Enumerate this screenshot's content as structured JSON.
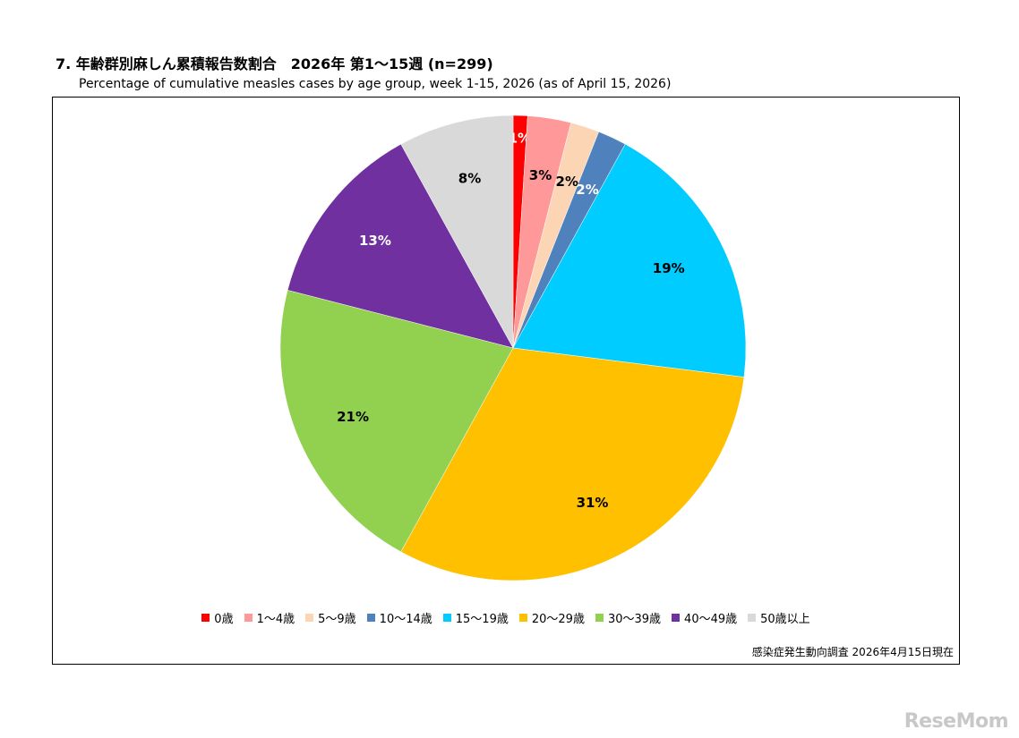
{
  "header": {
    "title": "7. 年齢群別麻しん累積報告数割合　2026年 第1～15週 (n=299)",
    "subtitle": "Percentage of cumulative measles cases by age group, week 1-15, 2026 (as of April 15, 2026)"
  },
  "footer": {
    "source_note": "感染症発生動向調査 2026年4月15日現在",
    "watermark": "ReseMom"
  },
  "chart_data": {
    "type": "pie",
    "title": "7. 年齢群別麻しん累積報告数割合　2026年 第1～15週 (n=299)",
    "subtitle": "Percentage of cumulative measles cases by age group, week 1-15, 2026 (as of April 15, 2026)",
    "n": 299,
    "start_angle": "top (12 o'clock), clockwise",
    "legend_position": "bottom",
    "slices": [
      {
        "label": "0歳",
        "value": 1,
        "display": "1%",
        "color": "#ff0000",
        "label_color": "#ffffff"
      },
      {
        "label": "1～4歳",
        "value": 3,
        "display": "3%",
        "color": "#ff9999",
        "label_color": "#000000"
      },
      {
        "label": "5～9歳",
        "value": 2,
        "display": "2%",
        "color": "#fcd5b5",
        "label_color": "#000000"
      },
      {
        "label": "10～14歳",
        "value": 2,
        "display": "2%",
        "color": "#4f81bd",
        "label_color": "#ffffff"
      },
      {
        "label": "15～19歳",
        "value": 19,
        "display": "19%",
        "color": "#00ccff",
        "label_color": "#000000"
      },
      {
        "label": "20～29歳",
        "value": 31,
        "display": "31%",
        "color": "#ffc000",
        "label_color": "#000000"
      },
      {
        "label": "30～39歳",
        "value": 21,
        "display": "21%",
        "color": "#92d050",
        "label_color": "#000000"
      },
      {
        "label": "40～49歳",
        "value": 13,
        "display": "13%",
        "color": "#7030a0",
        "label_color": "#ffffff"
      },
      {
        "label": "50歳以上",
        "value": 8,
        "display": "8%",
        "color": "#d9d9d9",
        "label_color": "#000000"
      }
    ]
  }
}
